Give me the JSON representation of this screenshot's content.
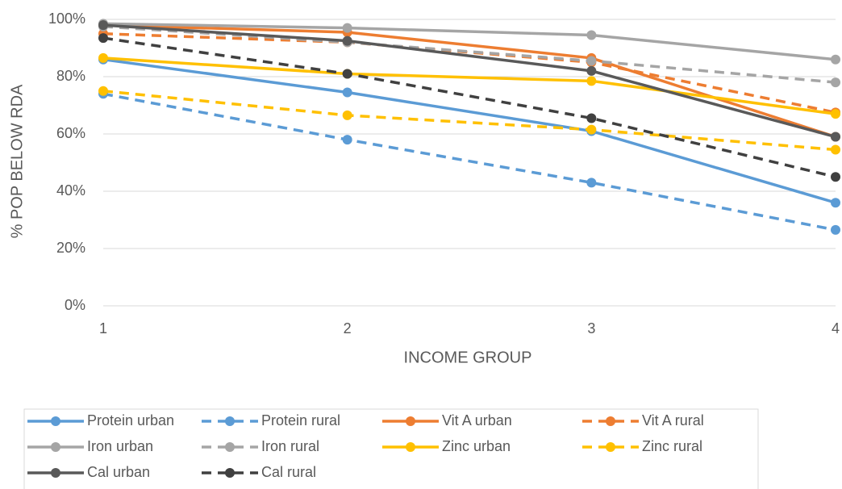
{
  "chart_data": {
    "type": "line",
    "x_label": "INCOME GROUP",
    "y_label": "% POP BELOW RDA",
    "x": [
      1,
      2,
      3,
      4
    ],
    "xlim": [
      1,
      4
    ],
    "xticks": [
      1,
      2,
      3,
      4
    ],
    "ylim": [
      0,
      100
    ],
    "yticks": [
      {
        "value": 0,
        "label": "0%"
      },
      {
        "value": 20,
        "label": "20%"
      },
      {
        "value": 40,
        "label": "40%"
      },
      {
        "value": 60,
        "label": "60%"
      },
      {
        "value": 80,
        "label": "80%"
      },
      {
        "value": 100,
        "label": "100%"
      }
    ],
    "grid": true,
    "legend": "bottom",
    "series": [
      {
        "name": "Protein urban",
        "color": "#5b9bd5",
        "line_style": "solid",
        "values": [
          86,
          74.5,
          61,
          36
        ]
      },
      {
        "name": "Protein rural",
        "color": "#5b9bd5",
        "line_style": "dashed",
        "values": [
          74,
          58,
          43,
          26.5
        ]
      },
      {
        "name": "Vit A urban",
        "color": "#ed7d31",
        "line_style": "solid",
        "values": [
          98,
          95.5,
          86.5,
          59
        ]
      },
      {
        "name": "Vit A rural",
        "color": "#ed7d31",
        "line_style": "dashed",
        "values": [
          95,
          92,
          85,
          67.5
        ]
      },
      {
        "name": "Iron urban",
        "color": "#a5a5a5",
        "line_style": "solid",
        "values": [
          98.5,
          97,
          94.5,
          86
        ]
      },
      {
        "name": "Iron rural",
        "color": "#a5a5a5",
        "line_style": "dashed",
        "values": [
          97.5,
          92,
          85.5,
          78
        ]
      },
      {
        "name": "Zinc urban",
        "color": "#ffc000",
        "line_style": "solid",
        "values": [
          86.5,
          81,
          78.5,
          67
        ]
      },
      {
        "name": "Zinc rural",
        "color": "#ffc000",
        "line_style": "dashed",
        "values": [
          75,
          66.5,
          61.5,
          54.5
        ]
      },
      {
        "name": "Cal urban",
        "color": "#595959",
        "line_style": "solid",
        "values": [
          98,
          92.5,
          82,
          59
        ]
      },
      {
        "name": "Cal rural",
        "color": "#404040",
        "line_style": "dashed",
        "values": [
          93.5,
          81,
          65.5,
          45
        ]
      }
    ]
  }
}
